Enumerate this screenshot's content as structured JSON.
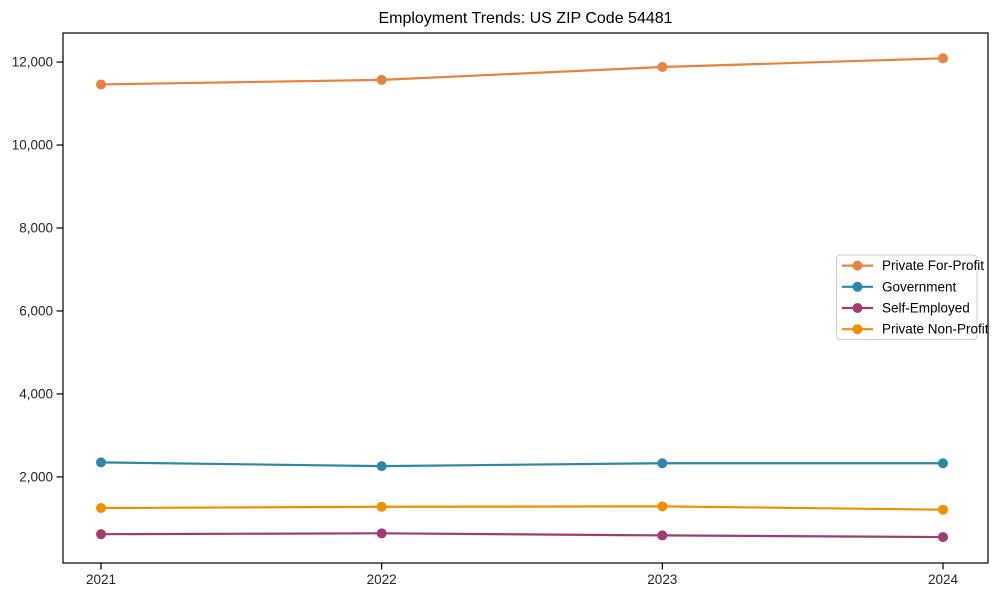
{
  "figure": {
    "background_color": "#ffffff",
    "spine_color": "#000000",
    "tick_label_color": "#262626"
  },
  "chart_data": {
    "type": "line",
    "title": "Employment Trends: US ZIP Code 54481",
    "xlabel": "",
    "ylabel": "",
    "x": [
      2021,
      2022,
      2023,
      2024
    ],
    "x_tick_labels": [
      "2021",
      "2022",
      "2023",
      "2024"
    ],
    "y_ticks": [
      2000,
      4000,
      6000,
      8000,
      10000,
      12000
    ],
    "y_tick_labels": [
      "2,000",
      "4,000",
      "6,000",
      "8,000",
      "10,000",
      "12,000"
    ],
    "ylim": [
      -75,
      12700
    ],
    "grid": false,
    "marker": "circle",
    "legend_position": "center-right",
    "series": [
      {
        "name": "Private For-Profit",
        "color": "#E8823E",
        "values": [
          11460,
          11570,
          11880,
          12090
        ]
      },
      {
        "name": "Government",
        "color": "#2E86AB",
        "values": [
          2350,
          2260,
          2330,
          2330
        ]
      },
      {
        "name": "Self-Employed",
        "color": "#A23B72",
        "values": [
          620,
          640,
          590,
          550
        ]
      },
      {
        "name": "Private Non-Profit",
        "color": "#F18F01",
        "values": [
          1250,
          1280,
          1290,
          1210
        ]
      }
    ]
  }
}
